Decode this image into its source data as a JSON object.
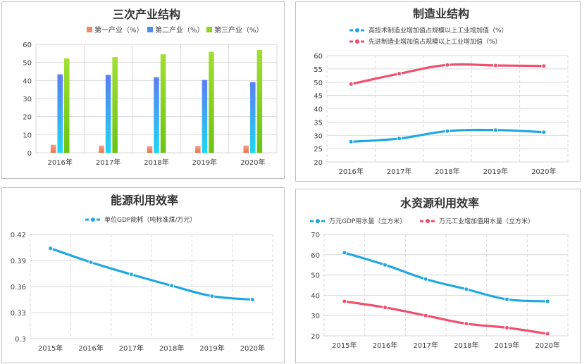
{
  "chart_data": [
    {
      "type": "bar",
      "title": "三次产业结构",
      "categories": [
        "2016年",
        "2017年",
        "2018年",
        "2019年",
        "2020年"
      ],
      "series": [
        {
          "name": "第一产业（%）",
          "values": [
            4.4,
            4.0,
            3.7,
            3.8,
            4.0
          ]
        },
        {
          "name": "第二产业（%）",
          "values": [
            43.4,
            43.1,
            41.8,
            40.3,
            39.1
          ]
        },
        {
          "name": "第三产业（%）",
          "values": [
            52.2,
            52.9,
            54.5,
            55.9,
            56.9
          ]
        }
      ],
      "ylim": [
        0,
        60
      ],
      "yticks": [
        "0",
        "10",
        "20",
        "30",
        "40",
        "50",
        "60"
      ],
      "legend": "top",
      "colors": [
        "#ed8a6c",
        "#4c8ef0",
        "#8fd420"
      ]
    },
    {
      "type": "line",
      "title": "制造业结构",
      "categories": [
        "2016年",
        "2017年",
        "2018年",
        "2019年",
        "2020年"
      ],
      "series": [
        {
          "name": "高技术制造业增加值占规模以上工业增加值（%）",
          "values": [
            27.6,
            28.8,
            31.6,
            32.0,
            31.2
          ]
        },
        {
          "name": "先进制造业增加值占规模以上工业增加值（%）",
          "values": [
            49.3,
            53.2,
            56.5,
            56.3,
            56.1
          ]
        }
      ],
      "ylim": [
        20,
        60
      ],
      "yticks": [
        "20",
        "25",
        "30",
        "35",
        "40",
        "45",
        "50",
        "55",
        "60"
      ],
      "legend": "top",
      "colors": [
        "#1ea7e1",
        "#f0506e"
      ]
    },
    {
      "type": "line",
      "title": "能源利用效率",
      "categories": [
        "2015年",
        "2016年",
        "2017年",
        "2018年",
        "2019年",
        "2020年"
      ],
      "series": [
        {
          "name": "单位GDP能耗（吨标准煤/万元）",
          "values": [
            0.404,
            0.388,
            0.374,
            0.361,
            0.349,
            0.345
          ]
        }
      ],
      "ylim": [
        0.3,
        0.42
      ],
      "yticks": [
        "0.3",
        "0.33",
        "0.36",
        "0.39",
        "0.42"
      ],
      "legend": "top",
      "colors": [
        "#1ea7e1"
      ]
    },
    {
      "type": "line",
      "title": "水资源利用效率",
      "categories": [
        "2015年",
        "2016年",
        "2017年",
        "2018年",
        "2019年",
        "2020年"
      ],
      "series": [
        {
          "name": "万元GDP用水量（立方米）",
          "values": [
            61,
            55,
            48,
            43,
            38,
            37
          ]
        },
        {
          "name": "万元工业增加值用水量（立方米）",
          "values": [
            37,
            34,
            30,
            26,
            24,
            21
          ]
        }
      ],
      "ylim": [
        20,
        70
      ],
      "yticks": [
        "20",
        "30",
        "40",
        "50",
        "60",
        "70"
      ],
      "legend": "top",
      "colors": [
        "#1ea7e1",
        "#f0506e"
      ]
    }
  ]
}
